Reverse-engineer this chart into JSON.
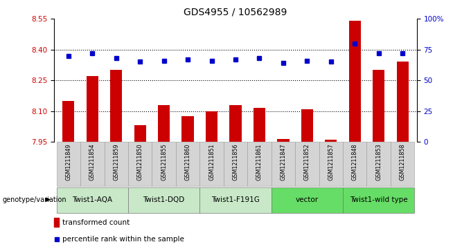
{
  "title": "GDS4955 / 10562989",
  "samples": [
    "GSM1211849",
    "GSM1211854",
    "GSM1211859",
    "GSM1211850",
    "GSM1211855",
    "GSM1211860",
    "GSM1211851",
    "GSM1211856",
    "GSM1211861",
    "GSM1211847",
    "GSM1211852",
    "GSM1211857",
    "GSM1211848",
    "GSM1211853",
    "GSM1211858"
  ],
  "bar_values": [
    8.15,
    8.27,
    8.3,
    8.03,
    8.13,
    8.075,
    8.1,
    8.13,
    8.115,
    7.965,
    8.11,
    7.96,
    8.54,
    8.3,
    8.34
  ],
  "percentile_values": [
    70,
    72,
    68,
    65,
    66,
    67,
    66,
    67,
    68,
    64,
    66,
    65,
    80,
    72,
    72
  ],
  "ylim_left": [
    7.95,
    8.55
  ],
  "ylim_right": [
    0,
    100
  ],
  "yticks_left": [
    7.95,
    8.1,
    8.25,
    8.4,
    8.55
  ],
  "yticks_right": [
    0,
    25,
    50,
    75,
    100
  ],
  "ytick_labels_right": [
    "0",
    "25",
    "50",
    "75",
    "100%"
  ],
  "hlines": [
    8.1,
    8.25,
    8.4
  ],
  "bar_color": "#cc0000",
  "dot_color": "#0000cc",
  "genotype_groups": [
    {
      "label": "Twist1-AQA",
      "start": 0,
      "end": 3,
      "color": "#c8e8c8"
    },
    {
      "label": "Twist1-DQD",
      "start": 3,
      "end": 6,
      "color": "#c8e8c8"
    },
    {
      "label": "Twist1-F191G",
      "start": 6,
      "end": 9,
      "color": "#c8e8c8"
    },
    {
      "label": "vector",
      "start": 9,
      "end": 12,
      "color": "#66dd66"
    },
    {
      "label": "Twist1-wild type",
      "start": 12,
      "end": 15,
      "color": "#66dd66"
    }
  ],
  "genotype_label": "genotype/variation",
  "legend_bar_label": "transformed count",
  "legend_dot_label": "percentile rank within the sample",
  "tick_label_color_left": "#cc0000",
  "tick_label_color_right": "#0000cc",
  "sample_cell_color": "#d4d4d4",
  "title_fontsize": 10,
  "tick_fontsize": 7.5,
  "bar_width": 0.5
}
